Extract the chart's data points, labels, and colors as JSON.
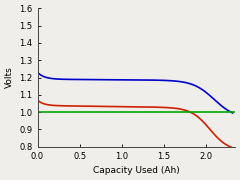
{
  "xlabel": "Capacity Used (Ah)",
  "ylabel": "Volts",
  "xlim": [
    0,
    2.35
  ],
  "ylim": [
    0.8,
    1.6
  ],
  "xticks": [
    0,
    0.5,
    1.0,
    1.5,
    2.0
  ],
  "yticks": [
    0.8,
    0.9,
    1.0,
    1.1,
    1.2,
    1.3,
    1.4,
    1.5,
    1.6
  ],
  "cutoff_voltage": 1.0,
  "blue_color": "#0000cc",
  "red_color": "#cc2200",
  "green_color": "#00aa00",
  "background_color": "#f0eeea",
  "linewidth": 1.2
}
